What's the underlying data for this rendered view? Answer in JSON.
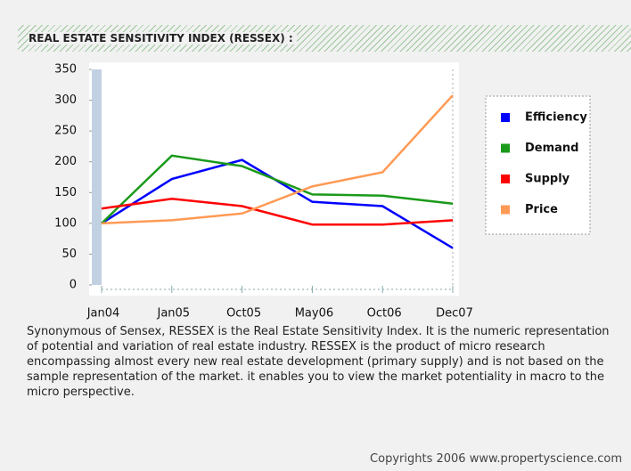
{
  "chart_data": {
    "type": "line",
    "title": "REAL ESTATE SENSITIVITY INDEX (RESSEX) :",
    "categories": [
      "Jan04",
      "Jan05",
      "Oct05",
      "May06",
      "Oct06",
      "Dec07"
    ],
    "series": [
      {
        "name": "Efficiency",
        "color": "#0000ff",
        "values": [
          100,
          172,
          203,
          135,
          128,
          60
        ]
      },
      {
        "name": "Demand",
        "color": "#1a9a1a",
        "values": [
          100,
          210,
          193,
          147,
          145,
          132
        ]
      },
      {
        "name": "Supply",
        "color": "#ff0000",
        "values": [
          124,
          140,
          128,
          98,
          98,
          105
        ]
      },
      {
        "name": "Price",
        "color": "#ff9a55",
        "values": [
          100,
          105,
          116,
          160,
          183,
          308
        ]
      }
    ],
    "ylim": [
      0,
      350
    ],
    "yticks": [
      0,
      50,
      100,
      150,
      200,
      250,
      300,
      350
    ],
    "legend": "right"
  },
  "description": "Synonymous of Sensex, RESSEX is the Real Estate Sensitivity Index. It is the numeric representation of potential and variation of real estate industry. RESSEX is the product of micro research encompassing almost every new real estate development (primary supply) and is not based on the sample representation of the market. it enables you to view the market potentiality in macro to the micro perspective.",
  "copyright": "Copyrights 2006 www.propertyscience.com"
}
